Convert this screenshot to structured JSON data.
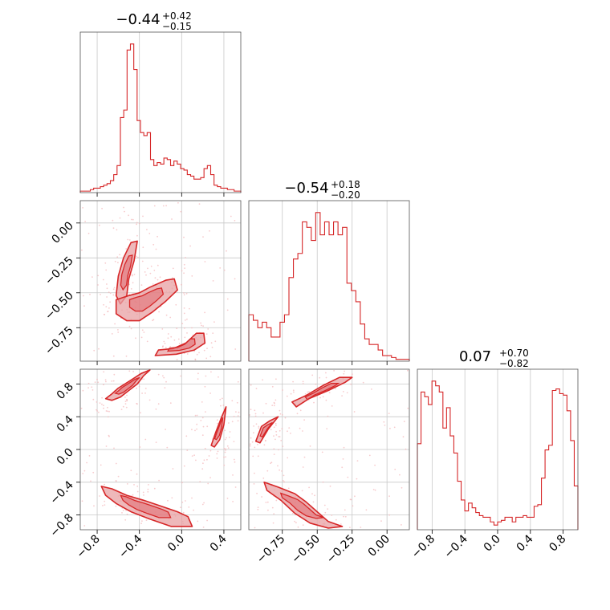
{
  "chart_data": {
    "type": "corner",
    "line_color": "#d62728",
    "fill_color": "#e8a0a3",
    "panel_titles": [
      {
        "value": "−0.44",
        "plus": "+0.42",
        "minus": "−0.15"
      },
      {
        "value": "−0.54",
        "plus": "+0.18",
        "minus": "−0.20"
      },
      {
        "value": "0.07",
        "plus": "+0.70",
        "minus": "−0.82"
      }
    ],
    "params": [
      {
        "range": [
          -0.96,
          0.56
        ],
        "ticks": [
          -0.8,
          -0.4,
          0.0,
          0.4
        ],
        "tick_labels": [
          "−0.8",
          "−0.4",
          "0.0",
          "0.4"
        ]
      },
      {
        "range": [
          -0.99,
          0.16
        ],
        "ticks": [
          -0.75,
          -0.5,
          -0.25,
          0.0
        ],
        "tick_labels": [
          "−0.75",
          "−0.50",
          "−0.25",
          "0.00"
        ]
      },
      {
        "range": [
          -0.98,
          0.98
        ],
        "ticks": [
          -0.8,
          -0.4,
          0.0,
          0.4,
          0.8
        ],
        "tick_labels": [
          "−0.8",
          "−0.4",
          "0.0",
          "0.4",
          "0.8"
        ]
      }
    ],
    "hist": [
      {
        "values": [
          1,
          1,
          1,
          2,
          3,
          3,
          4,
          5,
          6,
          8,
          12,
          18,
          50,
          55,
          95,
          99,
          82,
          48,
          40,
          38,
          40,
          22,
          18,
          20,
          19,
          23,
          22,
          18,
          21,
          19,
          16,
          15,
          12,
          11,
          9,
          9,
          10,
          16,
          18,
          12,
          5,
          4,
          3,
          3,
          2,
          2,
          1,
          1
        ]
      },
      {
        "values": [
          25,
          22,
          18,
          21,
          18,
          13,
          13,
          21,
          25,
          45,
          55,
          58,
          75,
          72,
          65,
          80,
          68,
          75,
          68,
          75,
          68,
          72,
          42,
          38,
          32,
          20,
          12,
          9,
          9,
          6,
          3,
          3,
          2,
          1,
          1,
          1
        ]
      },
      {
        "values": [
          55,
          88,
          85,
          80,
          95,
          92,
          88,
          65,
          78,
          60,
          49,
          31,
          19,
          12,
          17,
          14,
          11,
          9,
          8,
          8,
          5,
          3,
          5,
          6,
          8,
          8,
          5,
          8,
          8,
          9,
          8,
          8,
          15,
          16,
          33,
          51,
          54,
          89,
          90,
          87,
          86,
          76,
          57,
          28
        ]
      }
    ],
    "contours": {
      "1-0": [
        [
          [
            -0.62,
            -0.52
          ],
          [
            -0.6,
            -0.38
          ],
          [
            -0.55,
            -0.25
          ],
          [
            -0.48,
            -0.14
          ],
          [
            -0.42,
            -0.13
          ],
          [
            -0.45,
            -0.27
          ],
          [
            -0.5,
            -0.4
          ],
          [
            -0.52,
            -0.52
          ],
          [
            -0.58,
            -0.58
          ]
        ],
        [
          [
            -0.62,
            -0.55
          ],
          [
            -0.5,
            -0.52
          ],
          [
            -0.4,
            -0.5
          ],
          [
            -0.3,
            -0.46
          ],
          [
            -0.15,
            -0.41
          ],
          [
            -0.07,
            -0.4
          ],
          [
            -0.04,
            -0.48
          ],
          [
            -0.15,
            -0.56
          ],
          [
            -0.28,
            -0.64
          ],
          [
            -0.4,
            -0.7
          ],
          [
            -0.52,
            -0.7
          ],
          [
            -0.62,
            -0.65
          ]
        ],
        [
          [
            -0.25,
            -0.95
          ],
          [
            -0.05,
            -0.94
          ],
          [
            0.12,
            -0.91
          ],
          [
            0.22,
            -0.86
          ],
          [
            0.21,
            -0.79
          ],
          [
            0.14,
            -0.79
          ],
          [
            0.04,
            -0.86
          ],
          [
            -0.08,
            -0.9
          ],
          [
            -0.22,
            -0.91
          ]
        ]
      ],
      "2-0": [
        [
          [
            -0.72,
            0.62
          ],
          [
            -0.66,
            0.68
          ],
          [
            -0.6,
            0.75
          ],
          [
            -0.5,
            0.83
          ],
          [
            -0.38,
            0.93
          ],
          [
            -0.3,
            0.97
          ],
          [
            -0.36,
            0.9
          ],
          [
            -0.42,
            0.8
          ],
          [
            -0.5,
            0.72
          ],
          [
            -0.58,
            0.64
          ],
          [
            -0.66,
            0.6
          ]
        ],
        [
          [
            -0.76,
            -0.45
          ],
          [
            -0.66,
            -0.48
          ],
          [
            -0.52,
            -0.56
          ],
          [
            -0.36,
            -0.62
          ],
          [
            -0.2,
            -0.69
          ],
          [
            -0.04,
            -0.76
          ],
          [
            0.06,
            -0.82
          ],
          [
            0.1,
            -0.94
          ],
          [
            -0.1,
            -0.94
          ],
          [
            -0.3,
            -0.85
          ],
          [
            -0.48,
            -0.76
          ],
          [
            -0.62,
            -0.66
          ],
          [
            -0.72,
            -0.56
          ]
        ],
        [
          [
            0.28,
            0.05
          ],
          [
            0.32,
            0.2
          ],
          [
            0.38,
            0.4
          ],
          [
            0.42,
            0.52
          ],
          [
            0.4,
            0.3
          ],
          [
            0.36,
            0.12
          ],
          [
            0.31,
            0.03
          ]
        ]
      ],
      "2-1": [
        [
          [
            -0.94,
            0.1
          ],
          [
            -0.9,
            0.28
          ],
          [
            -0.84,
            0.35
          ],
          [
            -0.78,
            0.4
          ],
          [
            -0.85,
            0.25
          ],
          [
            -0.91,
            0.08
          ]
        ],
        [
          [
            -0.65,
            0.52
          ],
          [
            -0.56,
            0.62
          ],
          [
            -0.42,
            0.72
          ],
          [
            -0.3,
            0.82
          ],
          [
            -0.25,
            0.88
          ],
          [
            -0.34,
            0.88
          ],
          [
            -0.46,
            0.78
          ],
          [
            -0.58,
            0.66
          ],
          [
            -0.68,
            0.58
          ]
        ],
        [
          [
            -0.88,
            -0.4
          ],
          [
            -0.78,
            -0.46
          ],
          [
            -0.66,
            -0.54
          ],
          [
            -0.58,
            -0.64
          ],
          [
            -0.5,
            -0.76
          ],
          [
            -0.42,
            -0.88
          ],
          [
            -0.32,
            -0.94
          ],
          [
            -0.42,
            -0.96
          ],
          [
            -0.55,
            -0.9
          ],
          [
            -0.66,
            -0.78
          ],
          [
            -0.76,
            -0.62
          ],
          [
            -0.86,
            -0.5
          ]
        ]
      ]
    }
  }
}
